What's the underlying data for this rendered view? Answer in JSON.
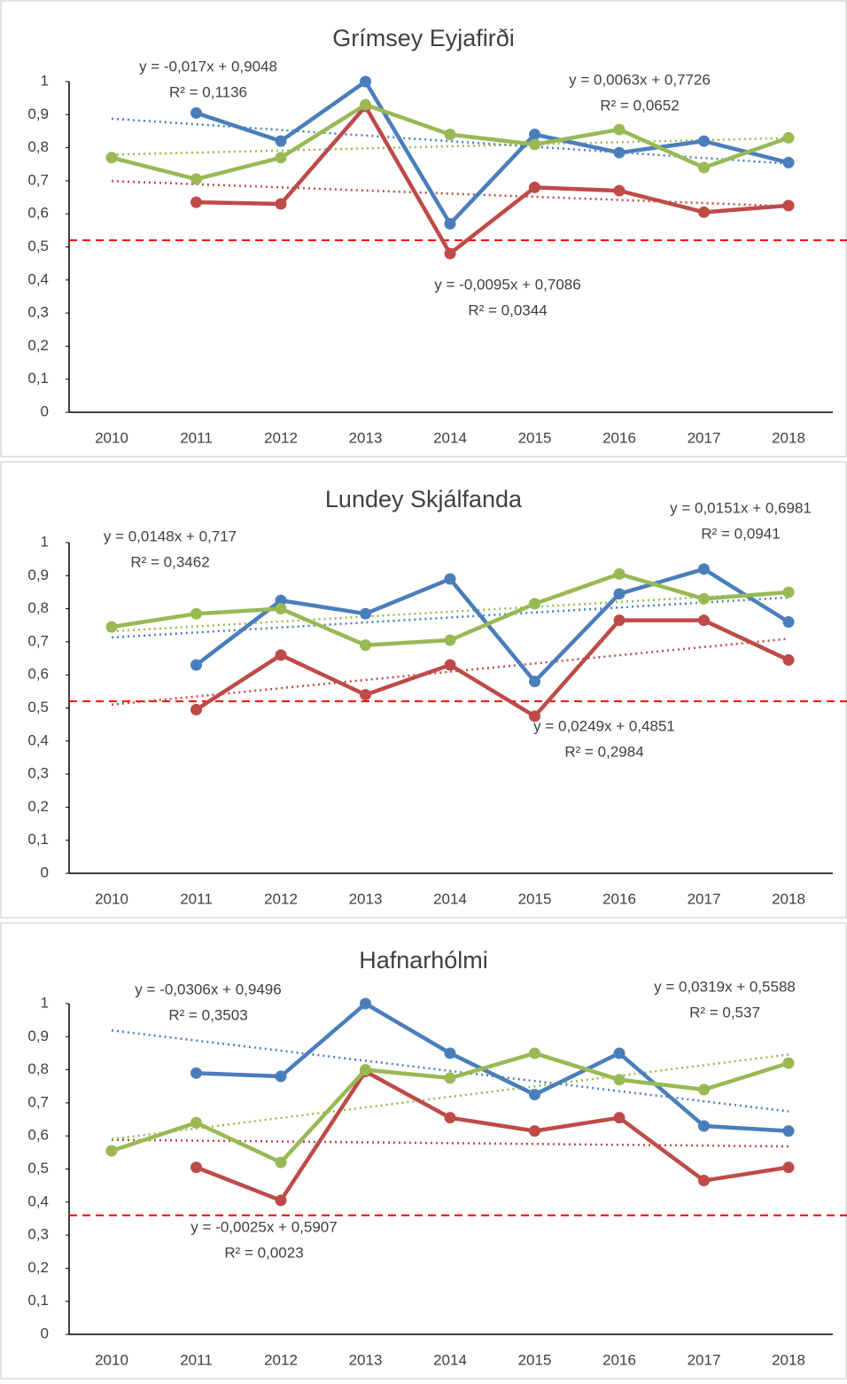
{
  "chart_data": [
    {
      "type": "line",
      "title": "Grímsey Eyjafirði",
      "categories": [
        "2010",
        "2011",
        "2012",
        "2013",
        "2014",
        "2015",
        "2016",
        "2017",
        "2018"
      ],
      "ylim": [
        0,
        1
      ],
      "yticks": [
        0,
        {
          "value": 0.1,
          "label": "0,1"
        },
        {
          "value": 0.2,
          "label": "0,2"
        },
        {
          "value": 0.3,
          "label": "0,3"
        },
        {
          "value": 0.4,
          "label": "0,4"
        },
        {
          "value": 0.5,
          "label": "0,5"
        },
        {
          "value": 0.6,
          "label": "0,6"
        },
        {
          "value": 0.7,
          "label": "0,7"
        },
        {
          "value": 0.8,
          "label": "0,8"
        },
        {
          "value": 0.9,
          "label": "0,9"
        },
        1
      ],
      "series": [
        {
          "color": "#4a7ebb",
          "values": [
            null,
            0.905,
            0.82,
            1.0,
            0.57,
            0.84,
            0.785,
            0.82,
            0.755
          ]
        },
        {
          "color": "#be4b48",
          "values": [
            null,
            0.635,
            0.63,
            0.925,
            0.48,
            0.68,
            0.67,
            0.605,
            0.625
          ]
        },
        {
          "color": "#98b954",
          "values": [
            0.77,
            0.705,
            0.77,
            0.93,
            0.84,
            0.81,
            0.855,
            0.74,
            0.83
          ]
        }
      ],
      "trendlines": [
        {
          "color": "#4a7ebb",
          "slope": -0.017,
          "intercept": 0.9048,
          "equation": "y = -0,017x + 0,9048",
          "r2": "R² = 0,1136"
        },
        {
          "color": "#be4b48",
          "slope": -0.0095,
          "intercept": 0.7086,
          "equation": "y = -0,0095x + 0,7086",
          "r2": "R² = 0,0344"
        },
        {
          "color": "#98b954",
          "slope": 0.0063,
          "intercept": 0.7726,
          "equation": "y = 0,0063x + 0,7726",
          "r2": "R² = 0,0652"
        }
      ],
      "threshold": 0.52,
      "threshold_color": "#ff0000"
    },
    {
      "type": "line",
      "title": "Lundey Skjálfanda",
      "categories": [
        "2010",
        "2011",
        "2012",
        "2013",
        "2014",
        "2015",
        "2016",
        "2017",
        "2018"
      ],
      "ylim": [
        0,
        1
      ],
      "yticks": [
        0,
        {
          "value": 0.1,
          "label": "0,1"
        },
        {
          "value": 0.2,
          "label": "0,2"
        },
        {
          "value": 0.3,
          "label": "0,3"
        },
        {
          "value": 0.4,
          "label": "0,4"
        },
        {
          "value": 0.5,
          "label": "0,5"
        },
        {
          "value": 0.6,
          "label": "0,6"
        },
        {
          "value": 0.7,
          "label": "0,7"
        },
        {
          "value": 0.8,
          "label": "0,8"
        },
        {
          "value": 0.9,
          "label": "0,9"
        },
        1
      ],
      "series": [
        {
          "color": "#4a7ebb",
          "values": [
            null,
            0.63,
            0.825,
            0.785,
            0.89,
            0.58,
            0.845,
            0.92,
            0.76
          ]
        },
        {
          "color": "#be4b48",
          "values": [
            null,
            0.495,
            0.66,
            0.54,
            0.63,
            0.475,
            0.765,
            0.765,
            0.645
          ]
        },
        {
          "color": "#98b954",
          "values": [
            0.745,
            0.785,
            0.8,
            0.69,
            0.705,
            0.815,
            0.905,
            0.83,
            0.85
          ]
        }
      ],
      "trendlines": [
        {
          "color": "#4a7ebb",
          "slope": 0.0151,
          "intercept": 0.6981,
          "equation": "y = 0,0151x + 0,6981",
          "r2": "R² = 0,0941"
        },
        {
          "color": "#be4b48",
          "slope": 0.0249,
          "intercept": 0.4851,
          "equation": "y = 0,0249x + 0,4851",
          "r2": "R² = 0,2984"
        },
        {
          "color": "#98b954",
          "slope": 0.0148,
          "intercept": 0.717,
          "equation": "y = 0,0148x + 0,717",
          "r2": "R² = 0,3462"
        }
      ],
      "threshold": 0.52,
      "threshold_color": "#ff0000"
    },
    {
      "type": "line",
      "title": "Hafnarhólmi",
      "categories": [
        "2010",
        "2011",
        "2012",
        "2013",
        "2014",
        "2015",
        "2016",
        "2017",
        "2018"
      ],
      "ylim": [
        0,
        1
      ],
      "yticks": [
        0,
        {
          "value": 0.1,
          "label": "0,1"
        },
        {
          "value": 0.2,
          "label": "0,2"
        },
        {
          "value": 0.3,
          "label": "0,3"
        },
        {
          "value": 0.4,
          "label": "0,4"
        },
        {
          "value": 0.5,
          "label": "0,5"
        },
        {
          "value": 0.6,
          "label": "0,6"
        },
        {
          "value": 0.7,
          "label": "0,7"
        },
        {
          "value": 0.8,
          "label": "0,8"
        },
        {
          "value": 0.9,
          "label": "0,9"
        },
        1
      ],
      "series": [
        {
          "color": "#4a7ebb",
          "values": [
            null,
            0.79,
            0.78,
            1.0,
            0.85,
            0.725,
            0.85,
            0.63,
            0.615
          ]
        },
        {
          "color": "#be4b48",
          "values": [
            null,
            0.505,
            0.405,
            0.795,
            0.655,
            0.615,
            0.655,
            0.465,
            0.505
          ]
        },
        {
          "color": "#98b954",
          "values": [
            0.555,
            0.64,
            0.52,
            0.8,
            0.775,
            0.85,
            0.77,
            0.74,
            0.82
          ]
        }
      ],
      "trendlines": [
        {
          "color": "#4a7ebb",
          "slope": -0.0306,
          "intercept": 0.9496,
          "equation": "y = -0,0306x + 0,9496",
          "r2": "R² = 0,3503"
        },
        {
          "color": "#be4b48",
          "slope": -0.0025,
          "intercept": 0.5907,
          "equation": "y = -0,0025x + 0,5907",
          "r2": "R² = 0,0023"
        },
        {
          "color": "#98b954",
          "slope": 0.0319,
          "intercept": 0.5588,
          "equation": "y = 0,0319x + 0,5588",
          "r2": "R² = 0,537"
        }
      ],
      "threshold": 0.36,
      "threshold_color": "#ff0000"
    }
  ]
}
